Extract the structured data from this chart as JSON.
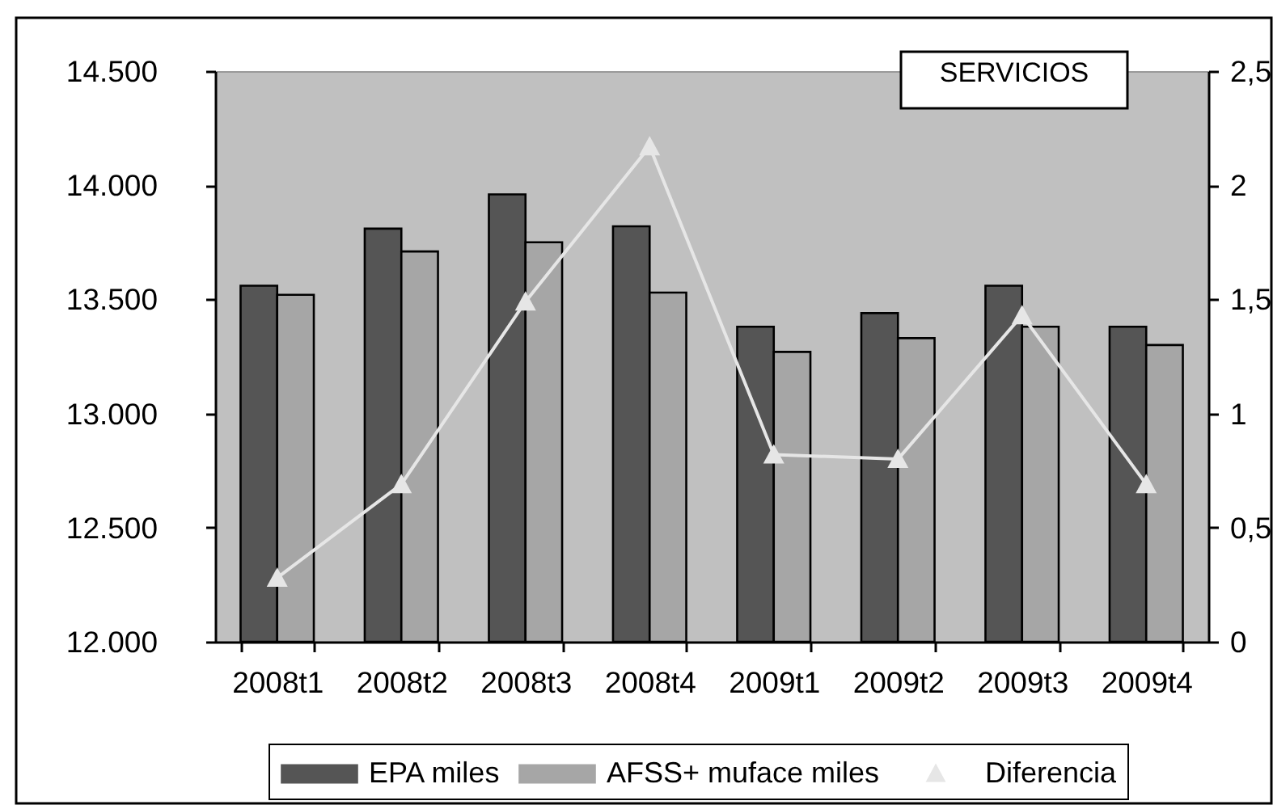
{
  "chart_data": {
    "type": "bar",
    "title": "SERVICIOS",
    "categories": [
      "2008t1",
      "2008t2",
      "2008t3",
      "2008t4",
      "2009t1",
      "2009t2",
      "2009t3",
      "2009t4"
    ],
    "series": [
      {
        "name": "EPA miles",
        "color": "#555555",
        "values": [
          13560,
          13810,
          13960,
          13820,
          13380,
          13440,
          13560,
          13380
        ]
      },
      {
        "name": "AFSS+ muface miles",
        "color": "#a6a6a6",
        "values": [
          13520,
          13710,
          13750,
          13530,
          13270,
          13330,
          13380,
          13300
        ]
      },
      {
        "name": "Diferencia",
        "type": "line",
        "axis": "y2",
        "color": "#e6e6e6",
        "values": [
          0.28,
          0.69,
          1.49,
          2.17,
          0.82,
          0.8,
          1.43,
          0.69
        ]
      }
    ],
    "ylim": [
      12000,
      14500
    ],
    "yticks": [
      {
        "value": 12000,
        "label": "12.000"
      },
      {
        "value": 12500,
        "label": "12.500"
      },
      {
        "value": 13000,
        "label": "13.000"
      },
      {
        "value": 13500,
        "label": "13.500"
      },
      {
        "value": 14000,
        "label": "14.000"
      },
      {
        "value": 14500,
        "label": "14.500"
      }
    ],
    "y2lim": [
      0,
      2.5
    ],
    "y2ticks": [
      0,
      {
        "value": 0.5,
        "label": "0,5"
      },
      1,
      {
        "value": 1.5,
        "label": "1,5"
      },
      2,
      {
        "value": 2.5,
        "label": "2,5"
      }
    ],
    "legend": "bottom",
    "grid": false,
    "marker": "triangle",
    "line_style": "solid"
  }
}
